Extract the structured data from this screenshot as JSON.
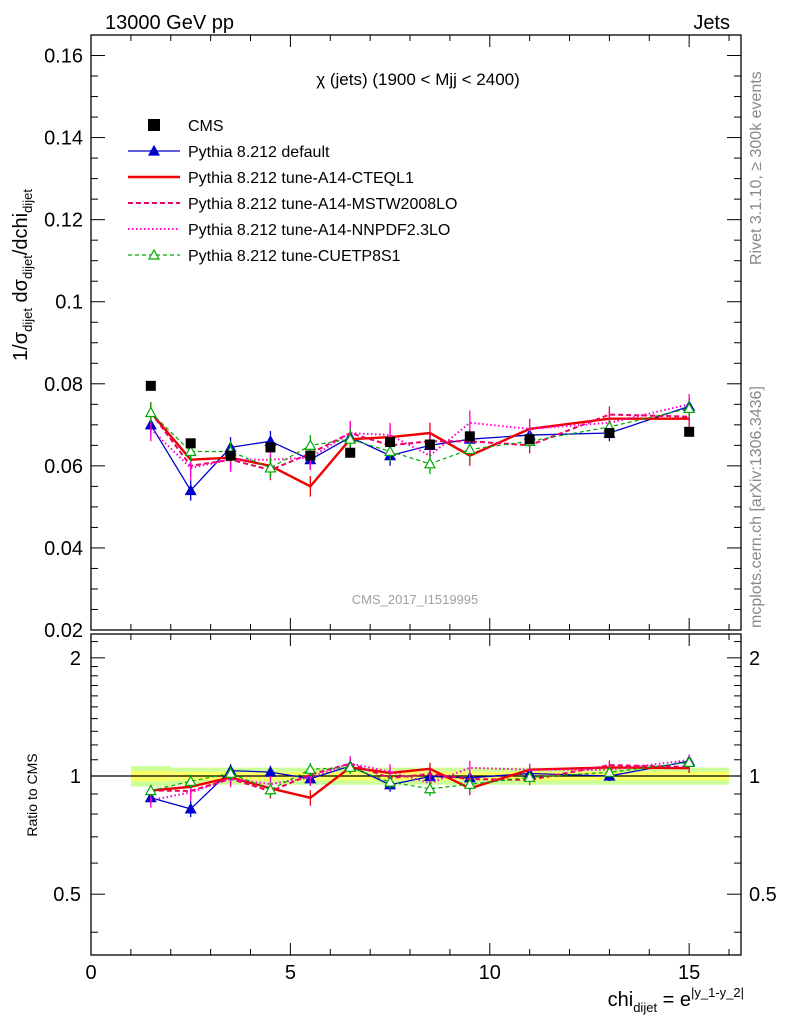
{
  "header": {
    "left_label": "13000 GeV pp",
    "right_label": "Jets"
  },
  "side": {
    "rivet": "Rivet 3.1.10, ≥ 300k events",
    "mcplots": "mcplots.cern.ch [arXiv:1306.3436]"
  },
  "chart_data": {
    "type": "line",
    "title": "χ (jets) (1900 < Mjj < 2400)",
    "watermark": "CMS_2017_I1519995",
    "ylabel_parts": {
      "a": "1/σ",
      "a_sub": "dijet",
      "b": " dσ",
      "b_sub": "dijet",
      "c": "/dchi",
      "c_sub": "dijet"
    },
    "xlabel_parts": {
      "a": "chi",
      "a_sub": "dijet",
      "b": " = e",
      "b_sup": "|y_1-y_2|"
    },
    "ratio_ylabel": "Ratio to CMS",
    "xlim": [
      0,
      16.3
    ],
    "ylim": [
      0.02,
      0.165
    ],
    "ratio_ylim": [
      0.35,
      2.3
    ],
    "grid": false,
    "legend_position": "top-left",
    "x_ticks": [
      "0",
      "5",
      "10",
      "15"
    ],
    "x_tick_values": [
      0,
      5,
      10,
      15
    ],
    "y_ticks": [
      "0.02",
      "0.04",
      "0.06",
      "0.08",
      "0.1",
      "0.12",
      "0.14",
      "0.16"
    ],
    "y_tick_values": [
      0.02,
      0.04,
      0.06,
      0.08,
      0.1,
      0.12,
      0.14,
      0.16
    ],
    "ratio_ticks": [
      "0.5",
      "1",
      "2"
    ],
    "ratio_tick_values": [
      0.5,
      1,
      2
    ],
    "x": [
      1.5,
      2.5,
      3.5,
      4.5,
      5.5,
      6.5,
      7.5,
      8.5,
      9.5,
      11.0,
      13.0,
      15.0
    ],
    "bin_edges": [
      1,
      2,
      3,
      4,
      5,
      6,
      7,
      8,
      9,
      10,
      12,
      14,
      16
    ],
    "data": {
      "name": "CMS",
      "values": [
        0.0795,
        0.0655,
        0.0625,
        0.0645,
        0.0625,
        0.0632,
        0.0658,
        0.0652,
        0.0672,
        0.0665,
        0.068,
        0.0683
      ]
    },
    "series": [
      {
        "name": "Pythia 8.212 default",
        "color": "#0000cc",
        "dash": "",
        "width": 1.3,
        "marker": "triangle-filled",
        "values": [
          0.07,
          0.054,
          0.0645,
          0.066,
          0.0615,
          0.067,
          0.0625,
          0.065,
          0.0665,
          0.0675,
          0.068,
          0.0745
        ],
        "errors": [
          0.0025,
          0.0025,
          0.0025,
          0.0025,
          0.0025,
          0.0025,
          0.0025,
          0.0025,
          0.0025,
          0.002,
          0.002,
          0.002
        ]
      },
      {
        "name": "Pythia 8.212 tune-A14-CTEQL1",
        "color": "#ee0000",
        "dash": "",
        "width": 2.4,
        "marker": "none",
        "values": [
          0.073,
          0.0615,
          0.062,
          0.06,
          0.055,
          0.0665,
          0.067,
          0.068,
          0.0625,
          0.069,
          0.0715,
          0.0715
        ],
        "errors": [
          0.0025,
          0.0025,
          0.0025,
          0.0025,
          0.0025,
          0.0025,
          0.0025,
          0.0025,
          0.0025,
          0.002,
          0.002,
          0.002
        ]
      },
      {
        "name": "Pythia 8.212 tune-A14-MSTW2008LO",
        "color": "#ee0066",
        "dash": "5,3",
        "width": 2.0,
        "marker": "none",
        "values": [
          0.073,
          0.06,
          0.0615,
          0.059,
          0.063,
          0.068,
          0.065,
          0.066,
          0.066,
          0.065,
          0.0725,
          0.072
        ],
        "errors": [
          0.0025,
          0.0025,
          0.0025,
          0.0025,
          0.0025,
          0.0025,
          0.0025,
          0.0025,
          0.0025,
          0.002,
          0.002,
          0.002
        ]
      },
      {
        "name": "Pythia 8.212 tune-A14-NNPDF2.3LO",
        "color": "#ff00cc",
        "dash": "1.5,2.5",
        "width": 2.0,
        "marker": "none",
        "values": [
          0.069,
          0.0595,
          0.0615,
          0.0615,
          0.062,
          0.068,
          0.0675,
          0.0625,
          0.0705,
          0.069,
          0.0705,
          0.075
        ],
        "errors": [
          0.003,
          0.003,
          0.003,
          0.003,
          0.003,
          0.003,
          0.003,
          0.003,
          0.003,
          0.0025,
          0.0025,
          0.0025
        ]
      },
      {
        "name": "Pythia 8.212 tune-CUETP8S1",
        "color": "#00aa00",
        "dash": "4,3",
        "width": 1.2,
        "marker": "triangle-open",
        "values": [
          0.073,
          0.0635,
          0.0635,
          0.0595,
          0.065,
          0.0665,
          0.0635,
          0.0605,
          0.064,
          0.066,
          0.0695,
          0.074
        ],
        "errors": [
          0.0025,
          0.0025,
          0.0025,
          0.0025,
          0.0025,
          0.0025,
          0.0025,
          0.0025,
          0.0025,
          0.002,
          0.002,
          0.002
        ]
      }
    ],
    "ratio_band": {
      "inner_half_width": [
        0.03,
        0.025,
        0.025,
        0.025,
        0.025,
        0.025,
        0.025,
        0.025,
        0.025,
        0.025,
        0.025,
        0.025
      ],
      "outer_half_width": [
        0.06,
        0.05,
        0.05,
        0.05,
        0.05,
        0.05,
        0.05,
        0.05,
        0.05,
        0.05,
        0.05,
        0.05
      ],
      "inner_color": "#ffff66",
      "outer_color": "#ccff99"
    }
  }
}
